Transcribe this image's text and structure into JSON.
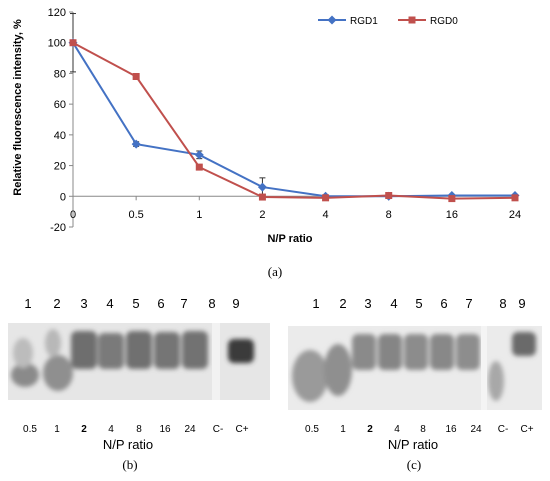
{
  "chart_data": {
    "type": "line",
    "title": "",
    "ylabel": "Relative fluorescence intensity, %",
    "xlabel": "N/P ratio",
    "categories": [
      "0",
      "0.5",
      "1",
      "2",
      "4",
      "8",
      "16",
      "24"
    ],
    "ylim": [
      -20,
      120
    ],
    "yticks": [
      "120",
      "100",
      "80",
      "60",
      "40",
      "20",
      "0",
      "-20"
    ],
    "grid": false,
    "legend": "top-right",
    "series": [
      {
        "name": "RGD1",
        "color": "#4472c4",
        "marker": "diamond",
        "values": [
          100,
          34,
          27,
          6,
          0,
          0,
          0.5,
          0.5
        ],
        "errors": [
          19,
          1.5,
          2.5,
          6,
          0,
          0,
          0,
          0
        ]
      },
      {
        "name": "RGD0",
        "color": "#c0504d",
        "marker": "square",
        "values": [
          100,
          78,
          19,
          -0.5,
          -1,
          0.5,
          -1.5,
          -1
        ],
        "errors": [
          0,
          0,
          0,
          0,
          0,
          1.5,
          0,
          0
        ]
      }
    ]
  },
  "captions": {
    "a": "(a)",
    "b": "(b)",
    "c": "(c)"
  },
  "gels": [
    {
      "id": "b",
      "lane_numbers": [
        "1",
        "2",
        "3",
        "4",
        "5",
        "6",
        "7",
        "8",
        "9"
      ],
      "ratio_labels": [
        "0.5",
        "1",
        "2",
        "4",
        "8",
        "16",
        "24",
        "C-",
        "C+"
      ],
      "bold_ratio": "2",
      "x_title": "N/P ratio",
      "caption": "(b)"
    },
    {
      "id": "c",
      "lane_numbers": [
        "1",
        "2",
        "3",
        "4",
        "5",
        "6",
        "7",
        "8",
        "9"
      ],
      "ratio_labels": [
        "0.5",
        "1",
        "2",
        "4",
        "8",
        "16",
        "24",
        "C-",
        "C+"
      ],
      "bold_ratio": "2",
      "x_title": "N/P ratio",
      "caption": "(c)"
    }
  ]
}
